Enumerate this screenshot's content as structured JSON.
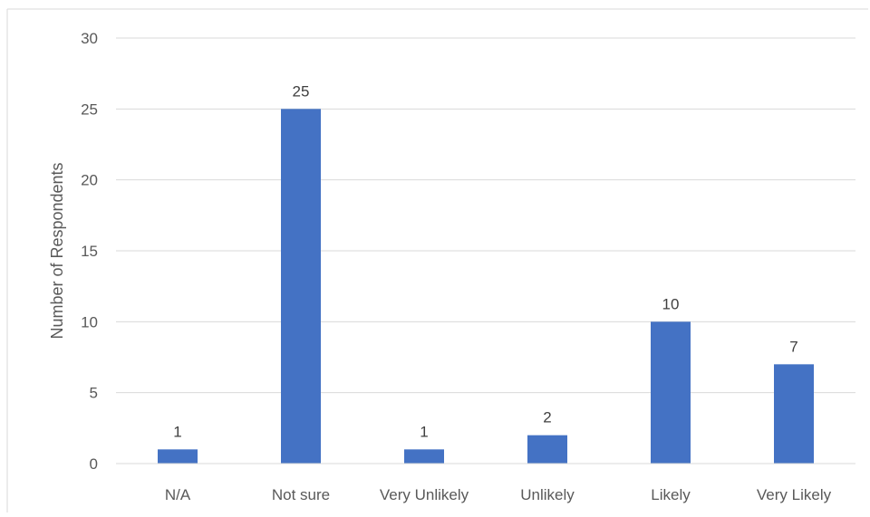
{
  "chart_data": {
    "type": "bar",
    "title": "",
    "xlabel": "",
    "ylabel": "Number of Respondents",
    "categories": [
      "N/A",
      "Not sure",
      "Very Unlikely",
      "Unlikely",
      "Likely",
      "Very Likely"
    ],
    "values": [
      1,
      25,
      1,
      2,
      10,
      7
    ],
    "data_labels": [
      "1",
      "25",
      "1",
      "2",
      "10",
      "7"
    ],
    "y_ticks": [
      0,
      5,
      10,
      15,
      20,
      25,
      30
    ],
    "ylim": [
      0,
      30
    ],
    "grid": true,
    "legend": "none",
    "bar_color": "#4472C4",
    "grid_color": "#D9D9D9",
    "text_color": "#595959"
  }
}
